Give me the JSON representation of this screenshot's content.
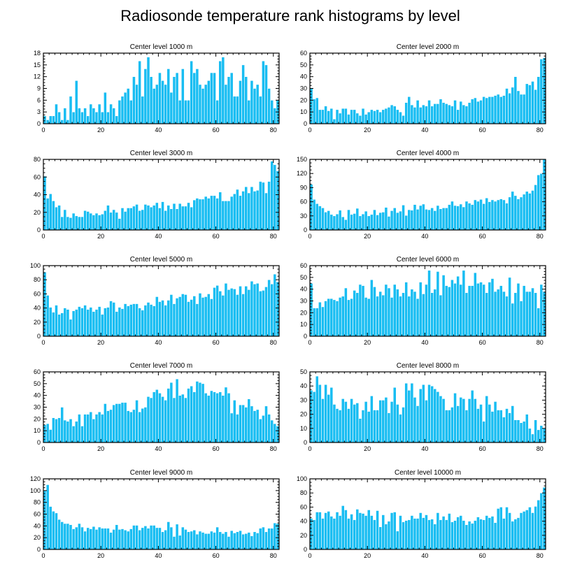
{
  "title": "Radiosonde temperature rank histograms by level",
  "colors": {
    "bar": "#18bdf2",
    "bar_edge": "#ffffff",
    "axis": "#000000"
  },
  "chart_data": [
    {
      "type": "bar",
      "title": "Center level 1000 m",
      "xlim": [
        0,
        82
      ],
      "ylim": [
        0,
        18
      ],
      "xticks": [
        0,
        20,
        40,
        60,
        80
      ],
      "yticks": [
        0,
        3,
        6,
        9,
        12,
        15,
        18
      ],
      "values": [
        2,
        1,
        2,
        2,
        5,
        3,
        1,
        4,
        1,
        7,
        3,
        11,
        4,
        3,
        4,
        2,
        5,
        4,
        3,
        5,
        3,
        8,
        3,
        5,
        4,
        2,
        6,
        7,
        8,
        9,
        6,
        12,
        10,
        16,
        7,
        14,
        17,
        12,
        9,
        10,
        13,
        11,
        10,
        14,
        8,
        12,
        13,
        6,
        14,
        6,
        6,
        16,
        13,
        14,
        10,
        9,
        10,
        11,
        13,
        13,
        6,
        16,
        17,
        10,
        12,
        13,
        7,
        7,
        11,
        15,
        12,
        6,
        11,
        9,
        10,
        7,
        16,
        15,
        9,
        6,
        4,
        6
      ]
    },
    {
      "type": "bar",
      "title": "Center level 2000 m",
      "xlim": [
        0,
        82
      ],
      "ylim": [
        0,
        60
      ],
      "xticks": [
        0,
        20,
        40,
        60,
        80
      ],
      "yticks": [
        0,
        10,
        20,
        30,
        40,
        50,
        60
      ],
      "values": [
        30,
        21,
        22,
        12,
        12,
        15,
        11,
        13,
        4,
        12,
        9,
        13,
        13,
        8,
        12,
        12,
        9,
        7,
        13,
        8,
        10,
        12,
        11,
        12,
        10,
        12,
        13,
        14,
        16,
        15,
        12,
        10,
        7,
        18,
        23,
        16,
        14,
        20,
        14,
        16,
        15,
        20,
        15,
        17,
        17,
        21,
        18,
        17,
        16,
        15,
        20,
        12,
        19,
        16,
        15,
        18,
        21,
        22,
        19,
        20,
        23,
        22,
        23,
        23,
        24,
        25,
        23,
        24,
        30,
        26,
        31,
        40,
        28,
        25,
        25,
        34,
        33,
        36,
        29,
        40,
        55,
        56
      ]
    },
    {
      "type": "bar",
      "title": "Center level 3000 m",
      "xlim": [
        0,
        82
      ],
      "ylim": [
        0,
        80
      ],
      "xticks": [
        0,
        20,
        40,
        60,
        80
      ],
      "yticks": [
        0,
        20,
        40,
        60,
        80
      ],
      "values": [
        61,
        36,
        41,
        33,
        26,
        28,
        15,
        23,
        15,
        14,
        19,
        16,
        15,
        15,
        22,
        21,
        19,
        17,
        19,
        17,
        18,
        22,
        28,
        20,
        23,
        20,
        13,
        25,
        21,
        25,
        25,
        27,
        29,
        22,
        23,
        29,
        28,
        26,
        28,
        31,
        25,
        32,
        22,
        28,
        24,
        30,
        24,
        30,
        27,
        27,
        31,
        26,
        34,
        36,
        35,
        35,
        38,
        36,
        39,
        39,
        36,
        43,
        33,
        33,
        33,
        38,
        41,
        46,
        39,
        44,
        49,
        42,
        49,
        44,
        45,
        55,
        54,
        42,
        55,
        78,
        74,
        67
      ]
    },
    {
      "type": "bar",
      "title": "Center level 4000 m",
      "xlim": [
        0,
        82
      ],
      "ylim": [
        0,
        150
      ],
      "xticks": [
        0,
        20,
        40,
        60,
        80
      ],
      "yticks": [
        0,
        30,
        60,
        90,
        120,
        150
      ],
      "values": [
        97,
        65,
        56,
        51,
        47,
        38,
        41,
        33,
        30,
        34,
        42,
        28,
        22,
        43,
        33,
        35,
        46,
        30,
        34,
        40,
        30,
        33,
        43,
        32,
        37,
        38,
        48,
        29,
        41,
        47,
        37,
        40,
        53,
        31,
        43,
        42,
        54,
        44,
        52,
        55,
        44,
        43,
        47,
        41,
        52,
        45,
        47,
        47,
        54,
        61,
        52,
        51,
        55,
        49,
        61,
        57,
        54,
        64,
        61,
        65,
        56,
        68,
        60,
        64,
        61,
        64,
        66,
        64,
        57,
        70,
        82,
        73,
        66,
        70,
        76,
        82,
        78,
        84,
        96,
        117,
        120,
        150
      ]
    },
    {
      "type": "bar",
      "title": "Center level 5000 m",
      "xlim": [
        0,
        82
      ],
      "ylim": [
        0,
        100
      ],
      "xticks": [
        0,
        20,
        40,
        60,
        80
      ],
      "yticks": [
        0,
        20,
        40,
        60,
        80,
        100
      ],
      "values": [
        91,
        58,
        41,
        34,
        44,
        31,
        33,
        40,
        38,
        24,
        36,
        38,
        42,
        40,
        44,
        38,
        41,
        35,
        38,
        42,
        31,
        40,
        41,
        50,
        48,
        35,
        41,
        39,
        46,
        43,
        45,
        46,
        46,
        40,
        37,
        44,
        48,
        45,
        43,
        56,
        49,
        51,
        44,
        51,
        59,
        46,
        54,
        56,
        60,
        59,
        49,
        52,
        57,
        46,
        61,
        55,
        56,
        60,
        53,
        69,
        72,
        64,
        58,
        75,
        66,
        68,
        67,
        59,
        71,
        60,
        71,
        66,
        78,
        74,
        75,
        64,
        65,
        70,
        80,
        74,
        88,
        77
      ]
    },
    {
      "type": "bar",
      "title": "Center level 6000 m",
      "xlim": [
        0,
        82
      ],
      "ylim": [
        0,
        60
      ],
      "xticks": [
        0,
        20,
        40,
        60,
        80
      ],
      "yticks": [
        0,
        10,
        20,
        30,
        40,
        50,
        60
      ],
      "values": [
        45,
        24,
        24,
        29,
        25,
        30,
        32,
        32,
        31,
        30,
        33,
        34,
        41,
        31,
        32,
        39,
        37,
        44,
        43,
        33,
        32,
        48,
        42,
        34,
        38,
        35,
        44,
        41,
        33,
        44,
        40,
        34,
        37,
        46,
        34,
        40,
        38,
        32,
        46,
        36,
        44,
        56,
        37,
        40,
        55,
        35,
        52,
        43,
        42,
        48,
        45,
        51,
        44,
        56,
        37,
        43,
        43,
        54,
        45,
        46,
        44,
        37,
        46,
        49,
        38,
        40,
        43,
        38,
        34,
        50,
        28,
        37,
        45,
        30,
        43,
        38,
        38,
        41,
        37,
        24,
        44,
        38
      ]
    },
    {
      "type": "bar",
      "title": "Center level 7000 m",
      "xlim": [
        0,
        82
      ],
      "ylim": [
        0,
        60
      ],
      "xticks": [
        0,
        20,
        40,
        60,
        80
      ],
      "yticks": [
        0,
        10,
        20,
        30,
        40,
        50,
        60
      ],
      "values": [
        15,
        16,
        11,
        21,
        20,
        21,
        30,
        19,
        18,
        20,
        14,
        18,
        24,
        14,
        24,
        24,
        26,
        20,
        24,
        26,
        24,
        33,
        27,
        28,
        32,
        33,
        33,
        34,
        34,
        27,
        26,
        28,
        36,
        26,
        29,
        30,
        39,
        38,
        43,
        45,
        42,
        39,
        36,
        46,
        51,
        38,
        54,
        40,
        41,
        38,
        46,
        48,
        43,
        52,
        51,
        50,
        42,
        40,
        44,
        43,
        42,
        43,
        40,
        47,
        42,
        25,
        36,
        24,
        32,
        32,
        30,
        37,
        31,
        27,
        28,
        20,
        23,
        31,
        24,
        19,
        16,
        14
      ]
    },
    {
      "type": "bar",
      "title": "Center level 8000 m",
      "xlim": [
        0,
        82
      ],
      "ylim": [
        0,
        50
      ],
      "xticks": [
        0,
        20,
        40,
        60,
        80
      ],
      "yticks": [
        0,
        10,
        20,
        30,
        40,
        50
      ],
      "values": [
        37,
        36,
        47,
        41,
        31,
        41,
        34,
        39,
        27,
        24,
        23,
        31,
        29,
        24,
        31,
        27,
        28,
        17,
        23,
        29,
        22,
        33,
        23,
        23,
        30,
        30,
        32,
        21,
        29,
        39,
        27,
        20,
        25,
        42,
        37,
        42,
        32,
        26,
        38,
        41,
        30,
        41,
        40,
        38,
        36,
        33,
        31,
        23,
        23,
        25,
        35,
        26,
        32,
        31,
        23,
        31,
        37,
        31,
        24,
        27,
        15,
        33,
        27,
        22,
        29,
        23,
        23,
        18,
        24,
        21,
        26,
        16,
        16,
        14,
        15,
        20,
        10,
        6,
        16,
        9,
        12,
        10
      ]
    },
    {
      "type": "bar",
      "title": "Center level 9000 m",
      "xlim": [
        0,
        82
      ],
      "ylim": [
        0,
        120
      ],
      "xticks": [
        0,
        20,
        40,
        60,
        80
      ],
      "yticks": [
        0,
        20,
        40,
        60,
        80,
        100,
        120
      ],
      "values": [
        100,
        110,
        73,
        65,
        62,
        51,
        47,
        44,
        44,
        42,
        35,
        38,
        44,
        38,
        31,
        37,
        35,
        39,
        34,
        38,
        36,
        36,
        36,
        29,
        34,
        42,
        34,
        35,
        33,
        31,
        35,
        41,
        41,
        33,
        37,
        40,
        36,
        41,
        41,
        37,
        37,
        30,
        33,
        47,
        38,
        22,
        43,
        24,
        38,
        34,
        30,
        31,
        33,
        26,
        31,
        29,
        27,
        27,
        31,
        29,
        38,
        30,
        27,
        30,
        22,
        32,
        28,
        30,
        32,
        26,
        27,
        29,
        23,
        30,
        28,
        36,
        38,
        30,
        36,
        36,
        45,
        44
      ]
    },
    {
      "type": "bar",
      "title": "Center level 10000 m",
      "xlim": [
        0,
        82
      ],
      "ylim": [
        0,
        100
      ],
      "xticks": [
        0,
        20,
        40,
        60,
        80
      ],
      "yticks": [
        0,
        20,
        40,
        60,
        80,
        100
      ],
      "values": [
        44,
        42,
        53,
        53,
        44,
        52,
        54,
        47,
        44,
        53,
        48,
        62,
        56,
        44,
        50,
        42,
        57,
        52,
        51,
        48,
        56,
        48,
        42,
        55,
        32,
        49,
        36,
        40,
        52,
        53,
        26,
        48,
        39,
        41,
        42,
        48,
        44,
        44,
        52,
        45,
        49,
        42,
        43,
        36,
        52,
        42,
        47,
        42,
        51,
        39,
        41,
        46,
        48,
        41,
        35,
        40,
        37,
        41,
        46,
        43,
        42,
        48,
        45,
        47,
        38,
        58,
        60,
        44,
        60,
        52,
        40,
        43,
        45,
        52,
        54,
        56,
        60,
        52,
        61,
        70,
        80,
        88
      ]
    }
  ]
}
